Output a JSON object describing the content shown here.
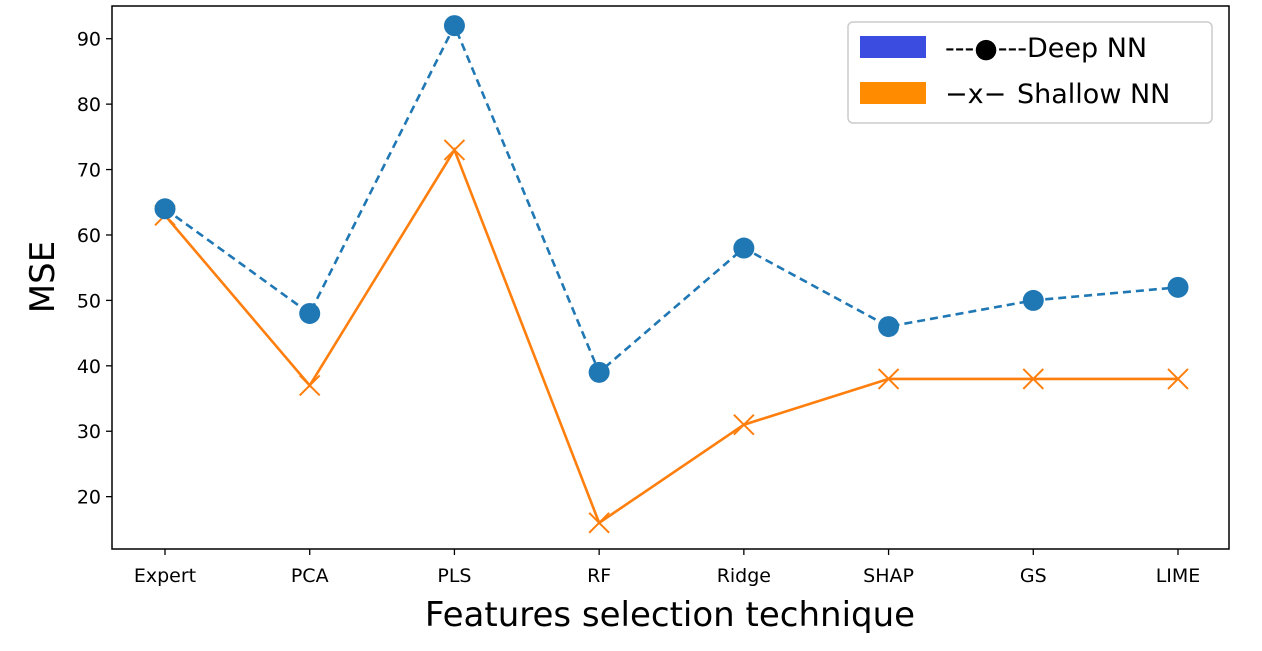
{
  "chart_data": {
    "type": "line",
    "title": "",
    "xlabel": "Features selection technique",
    "ylabel": "MSE",
    "categories": [
      "Expert",
      "PCA",
      "PLS",
      "RF",
      "Ridge",
      "SHAP",
      "GS",
      "LIME"
    ],
    "ylim": [
      12,
      95
    ],
    "yticks": [
      20,
      30,
      40,
      50,
      60,
      70,
      80,
      90
    ],
    "grid": false,
    "legend_position": "top-right",
    "series": [
      {
        "name": "Deep NN",
        "values": [
          64,
          48,
          92,
          39,
          58,
          46,
          50,
          52
        ],
        "color": "#1f77b4",
        "legend_swatch_color": "#3a4de0",
        "line_style": "dashed",
        "marker": "circle",
        "legend_marker_label": "---●---"
      },
      {
        "name": "Shallow NN",
        "values": [
          63,
          37,
          73,
          16,
          31,
          38,
          38,
          38
        ],
        "color": "#ff7f0e",
        "legend_swatch_color": "#ff8c00",
        "line_style": "solid",
        "marker": "x",
        "legend_marker_label": "−x−"
      }
    ]
  }
}
